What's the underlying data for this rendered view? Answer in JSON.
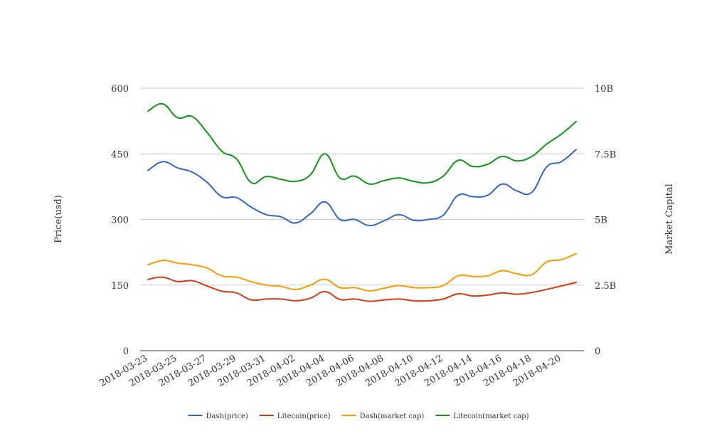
{
  "chart_data": {
    "type": "line",
    "title": "",
    "ylabel_left": "Price(usd)",
    "ylabel_right": "Market Capital",
    "ylim_left": [
      0,
      600
    ],
    "ylim_right": [
      0,
      10000000000
    ],
    "yticks_left": [
      "0",
      "150",
      "300",
      "450",
      "600"
    ],
    "yticks_right": [
      "0",
      "2.5B",
      "5B",
      "7.5B",
      "10B"
    ],
    "grid": true,
    "legend_position": "bottom",
    "x": [
      "2018-03-23",
      "2018-03-24",
      "2018-03-25",
      "2018-03-26",
      "2018-03-27",
      "2018-03-28",
      "2018-03-29",
      "2018-03-30",
      "2018-03-31",
      "2018-04-01",
      "2018-04-02",
      "2018-04-03",
      "2018-04-04",
      "2018-04-05",
      "2018-04-06",
      "2018-04-07",
      "2018-04-08",
      "2018-04-09",
      "2018-04-10",
      "2018-04-11",
      "2018-04-12",
      "2018-04-13",
      "2018-04-14",
      "2018-04-15",
      "2018-04-16",
      "2018-04-17",
      "2018-04-18",
      "2018-04-19",
      "2018-04-20",
      "2018-04-21"
    ],
    "xtick_labels": [
      "2018-03-23",
      "2018-03-25",
      "2018-03-27",
      "2018-03-29",
      "2018-03-31",
      "2018-04-02",
      "2018-04-04",
      "2018-04-06",
      "2018-04-08",
      "2018-04-10",
      "2018-04-12",
      "2018-04-14",
      "2018-04-16",
      "2018-04-18",
      "2018-04-20"
    ],
    "series": [
      {
        "name": "Dash(price)",
        "axis": "left",
        "color": "#3366cc",
        "values": [
          412,
          432,
          418,
          408,
          385,
          352,
          350,
          328,
          311,
          306,
          292,
          313,
          340,
          300,
          300,
          286,
          297,
          311,
          298,
          300,
          310,
          355,
          352,
          355,
          381,
          365,
          362,
          420,
          432,
          460
        ]
      },
      {
        "name": "Litecoin(price)",
        "axis": "left",
        "color": "#dc3912",
        "values": [
          163,
          168,
          158,
          160,
          148,
          136,
          132,
          116,
          118,
          118,
          114,
          120,
          135,
          117,
          118,
          113,
          116,
          118,
          114,
          114,
          118,
          130,
          125,
          127,
          132,
          129,
          133,
          140,
          148,
          156
        ]
      },
      {
        "name": "Dash(market cap)",
        "axis": "right",
        "color": "#ff9900",
        "values": [
          3270000000,
          3440000000,
          3340000000,
          3270000000,
          3150000000,
          2850000000,
          2800000000,
          2630000000,
          2500000000,
          2450000000,
          2330000000,
          2500000000,
          2720000000,
          2400000000,
          2400000000,
          2280000000,
          2380000000,
          2480000000,
          2400000000,
          2400000000,
          2480000000,
          2850000000,
          2830000000,
          2850000000,
          3050000000,
          2930000000,
          2900000000,
          3380000000,
          3470000000,
          3700000000
        ]
      },
      {
        "name": "Litecoin(market cap)",
        "axis": "right",
        "color": "#109618",
        "values": [
          9130000000,
          9400000000,
          8880000000,
          8920000000,
          8320000000,
          7600000000,
          7300000000,
          6400000000,
          6630000000,
          6530000000,
          6450000000,
          6700000000,
          7500000000,
          6580000000,
          6650000000,
          6350000000,
          6480000000,
          6580000000,
          6450000000,
          6400000000,
          6650000000,
          7250000000,
          7020000000,
          7100000000,
          7400000000,
          7230000000,
          7400000000,
          7870000000,
          8250000000,
          8730000000
        ]
      }
    ]
  }
}
